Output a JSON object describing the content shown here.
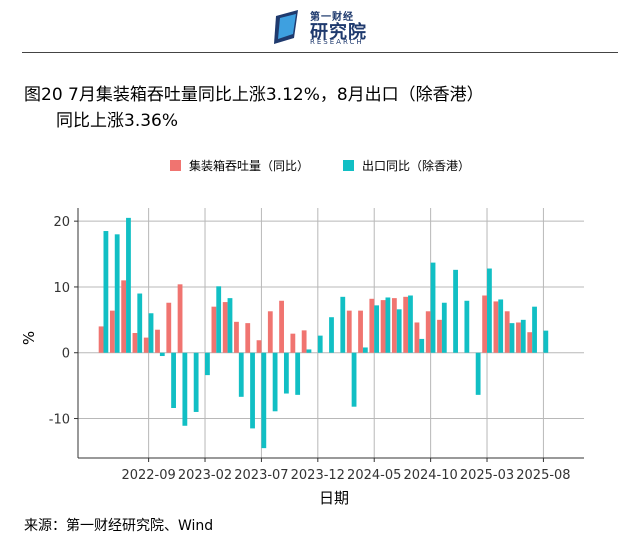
{
  "header": {
    "logo_small": "第一财经",
    "logo_main": "研究院",
    "logo_sub": "RESEARCH"
  },
  "title_line1": "图20 7月集装箱吞吐量同比上涨3.12%，8月出口（除香港）",
  "title_line2": "同比上涨3.36%",
  "source": "来源：第一财经研究院、Wind",
  "colors": {
    "series1": "#F07470",
    "series2": "#11BFC4",
    "grid": "#b8b8b8"
  },
  "chart_data": {
    "type": "bar",
    "xlabel": "日期",
    "ylabel": "%",
    "ylim": [
      -16,
      22
    ],
    "yticks": [
      -10,
      0,
      10,
      20
    ],
    "x_tick_labels": [
      "2022-09",
      "2023-02",
      "2023-07",
      "2023-12",
      "2024-05",
      "2024-10",
      "2025-03",
      "2025-08"
    ],
    "x_tick_index": [
      4,
      9,
      14,
      19,
      24,
      29,
      34,
      39
    ],
    "categories": [
      "2022-05",
      "2022-06",
      "2022-07",
      "2022-08",
      "2022-09",
      "2022-10",
      "2022-11",
      "2022-12",
      "2023-01",
      "2023-02",
      "2023-03",
      "2023-04",
      "2023-05",
      "2023-06",
      "2023-07",
      "2023-08",
      "2023-09",
      "2023-10",
      "2023-11",
      "2023-12",
      "2024-01",
      "2024-02",
      "2024-03",
      "2024-04",
      "2024-05",
      "2024-06",
      "2024-07",
      "2024-08",
      "2024-09",
      "2024-10",
      "2024-11",
      "2024-12",
      "2025-01",
      "2025-02",
      "2025-03",
      "2025-04",
      "2025-05",
      "2025-06",
      "2025-07",
      "2025-08"
    ],
    "series": [
      {
        "name": "集装箱吞吐量（同比）",
        "values": [
          4.0,
          6.4,
          11.0,
          3.0,
          2.3,
          3.5,
          7.6,
          10.4,
          null,
          null,
          7.0,
          7.7,
          4.7,
          4.5,
          1.9,
          6.3,
          7.9,
          2.9,
          3.4,
          null,
          null,
          null,
          6.4,
          6.4,
          8.2,
          8.0,
          8.3,
          8.5,
          4.6,
          6.3,
          5.0,
          null,
          null,
          null,
          8.7,
          7.8,
          6.3,
          4.6,
          3.12,
          null
        ]
      },
      {
        "name": "出口同比（除香港）",
        "values": [
          18.5,
          18.0,
          20.5,
          9.0,
          6.0,
          -0.5,
          -8.4,
          -11.1,
          -9.0,
          -3.4,
          10.1,
          8.3,
          -6.7,
          -11.5,
          -14.5,
          -8.9,
          -6.2,
          -6.4,
          0.5,
          2.6,
          5.4,
          8.5,
          -8.2,
          0.8,
          7.2,
          8.4,
          6.6,
          8.7,
          2.1,
          13.7,
          7.6,
          12.6,
          7.9,
          -6.4,
          12.8,
          8.1,
          4.5,
          5.0,
          7.0,
          3.36
        ]
      }
    ]
  }
}
